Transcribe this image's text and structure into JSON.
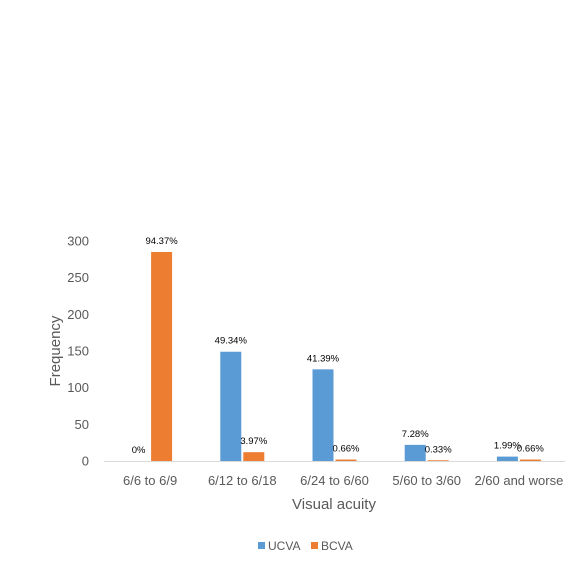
{
  "chart_data": {
    "type": "bar",
    "title": "",
    "xlabel": "Visual acuity",
    "ylabel": "Frequency",
    "ylim": [
      0,
      300
    ],
    "yticks": [
      "0",
      "50",
      "100",
      "150",
      "200",
      "250",
      "300"
    ],
    "categories": [
      "6/6 to 6/9",
      "6/12 to 6/18",
      "6/24 to 6/60",
      "5/60 to 3/60",
      "2/60 and worse"
    ],
    "series": [
      {
        "name": "UCVA",
        "color": "#5B9BD5",
        "values": [
          0,
          149,
          125,
          22,
          6
        ],
        "labels": [
          "0%",
          "49.34%",
          "41.39%",
          "7.28%",
          "1.99%"
        ]
      },
      {
        "name": "BCVA",
        "color": "#ED7D31",
        "values": [
          285,
          12,
          2,
          1,
          2
        ],
        "labels": [
          "94.37%",
          "3.97%",
          "0.66%",
          "0.33%",
          "0.66%"
        ]
      }
    ],
    "grid": false,
    "legend_position": "bottom"
  }
}
